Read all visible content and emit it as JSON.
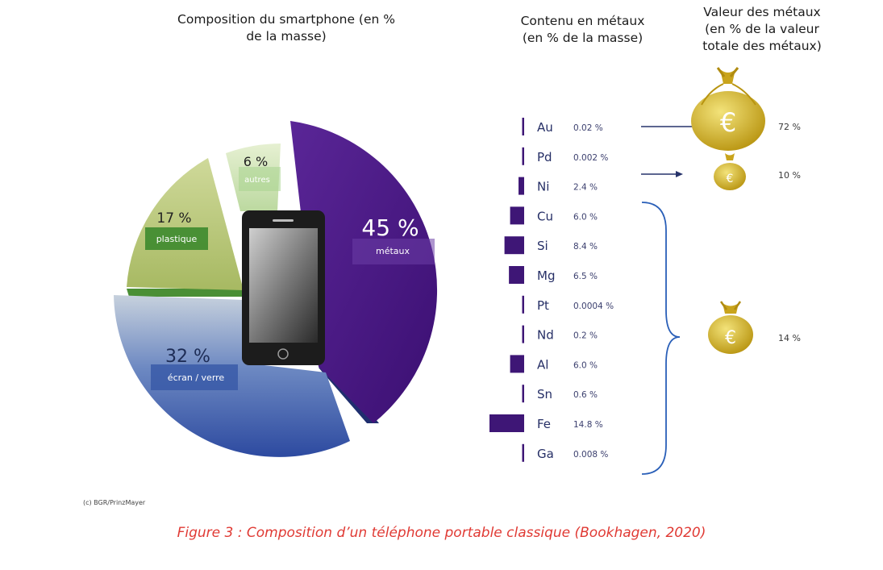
{
  "chart_data": [
    {
      "type": "pie",
      "title": "Composition du smartphone (en % de la masse)",
      "title_lines": [
        "Composition du smartphone (en %",
        "de la masse)"
      ],
      "slices": [
        {
          "label": "métaux",
          "value": 45,
          "value_label": "45 %",
          "color": "#4a1a86"
        },
        {
          "label": "écran / verre",
          "value": 32,
          "value_label": "32 %",
          "color": "#3f5ea8"
        },
        {
          "label": "plastique",
          "value": 17,
          "value_label": "17 %",
          "color": "#b9c878"
        },
        {
          "label": "autres",
          "value": 6,
          "value_label": "6 %",
          "color": "#cfe3b6"
        }
      ]
    },
    {
      "type": "bar",
      "title": "Contenu en métaux (en % de la masse)",
      "title_lines": [
        "Contenu en métaux",
        "(en % de la masse)"
      ],
      "categories": [
        "Au",
        "Pd",
        "Ni",
        "Cu",
        "Si",
        "Mg",
        "Pt",
        "Nd",
        "Al",
        "Sn",
        "Fe",
        "Ga"
      ],
      "values": [
        0.02,
        0.002,
        2.4,
        6.0,
        8.4,
        6.5,
        0.0004,
        0.2,
        6.0,
        0.6,
        14.8,
        0.008
      ],
      "value_labels": [
        "0.02 %",
        "0.002 %",
        "2.4 %",
        "6.0 %",
        "8.4 %",
        "6.5 %",
        "0.0004 %",
        "0.2 %",
        "6.0 %",
        "0.6 %",
        "14.8 %",
        "0.008 %"
      ],
      "color": "#3e1676"
    },
    {
      "type": "table",
      "title": "Valeur des métaux (en % de la valeur totale des métaux)",
      "title_lines": [
        "Valeur des métaux",
        "(en % de la valeur",
        "totale des métaux)"
      ],
      "rows": [
        {
          "group": "Au",
          "value": 72,
          "value_label": "72 %"
        },
        {
          "group": "Pd",
          "value": 10,
          "value_label": "10 %"
        },
        {
          "group": "Ni, Cu, Si, Mg, Pt, Nd, Al, Sn, Fe, Ga",
          "value": 14,
          "value_label": "14 %"
        }
      ],
      "icon": "money-bag-icon",
      "symbol": "€",
      "icon_color": "#c7a820"
    }
  ],
  "credit": "(c) BGR/PrinzMayer",
  "caption": "Figure 3 : Composition d’un téléphone portable classique (Bookhagen, 2020)"
}
